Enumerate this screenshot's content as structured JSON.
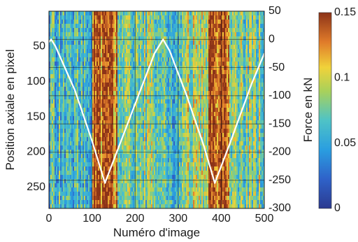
{
  "chart_data": {
    "type": "heatmap",
    "xlabel": "Numéro d'image",
    "ylabel": "Position axiale en pixel",
    "y2label": "Force en kN",
    "x_ticks": [
      "0",
      "100",
      "200",
      "300",
      "400",
      "500"
    ],
    "y_ticks": [
      "50",
      "100",
      "150",
      "200",
      "250"
    ],
    "y2_ticks": [
      "50",
      "0",
      "-50",
      "-100",
      "-150",
      "-200",
      "-250",
      "-300"
    ],
    "colorbar_ticks": [
      "0.15",
      "0.1",
      "0.05",
      "0"
    ],
    "xlim": [
      0,
      500
    ],
    "ylim": [
      280,
      0
    ],
    "y2lim": [
      -300,
      50
    ],
    "clim": [
      0,
      0.15
    ],
    "grid": true,
    "colormap": "parula",
    "heatmap_column_bands": [
      {
        "x": [
          0,
          100
        ],
        "mean_value": 0.06
      },
      {
        "x": [
          100,
          160
        ],
        "mean_value": 0.13
      },
      {
        "x": [
          160,
          250
        ],
        "mean_value": 0.08
      },
      {
        "x": [
          250,
          310
        ],
        "mean_value": 0.06
      },
      {
        "x": [
          310,
          370
        ],
        "mean_value": 0.09
      },
      {
        "x": [
          370,
          420
        ],
        "mean_value": 0.14
      },
      {
        "x": [
          420,
          500
        ],
        "mean_value": 0.08
      }
    ],
    "series": [
      {
        "axis": "right",
        "color": "#ffffff",
        "x": [
          0,
          5,
          15,
          60,
          100,
          130,
          150,
          200,
          245,
          265,
          280,
          320,
          360,
          385,
          420,
          470,
          500
        ],
        "y": [
          -5,
          0,
          -12,
          -90,
          -180,
          -255,
          -215,
          -115,
          -25,
          0,
          -20,
          -100,
          -190,
          -255,
          -185,
          -80,
          -25
        ]
      }
    ]
  }
}
